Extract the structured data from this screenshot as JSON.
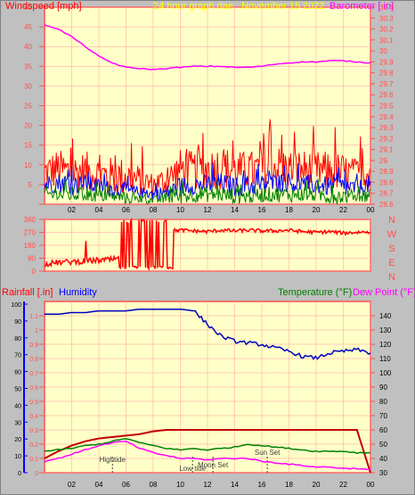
{
  "header": {
    "left_title": "Windspeed [mph]",
    "center_title": "24 hour graph dae : November 15 2022",
    "right_title": "Barometer [ in]"
  },
  "colors": {
    "background": "#c0c0c0",
    "plot_bg": "#ffffc8",
    "frame": "#ff5050",
    "grid": "#ff9c9c",
    "wind_gust": "#ff0000",
    "wind_avg": "#0000ff",
    "wind_low": "#008000",
    "wind_min": "#c0c000",
    "barometer": "#ff00ff",
    "direction": "#ff0000",
    "humidity": "#0000c0",
    "rainfall": "#c00000",
    "temperature": "#008000",
    "dewpoint": "#ff00ff",
    "label_yellow": "#ffff00",
    "axis_blue": "#0000ff",
    "text_dark": "#000000",
    "grey_text": "#404040"
  },
  "x_ticks": [
    "02",
    "04",
    "06",
    "08",
    "10",
    "12",
    "14",
    "16",
    "18",
    "20",
    "22",
    "00"
  ],
  "chart_data": [
    {
      "type": "line",
      "id": "wind_baro",
      "title": "24 hour graph dae : November 15 2022",
      "xlabel": "",
      "x_hours": [
        0,
        1,
        2,
        3,
        4,
        5,
        6,
        7,
        8,
        9,
        10,
        11,
        12,
        13,
        14,
        15,
        16,
        17,
        18,
        19,
        20,
        21,
        22,
        23,
        24
      ],
      "left_axis": {
        "label": "Windspeed [mph]",
        "ylim": [
          0,
          50
        ],
        "ticks": [
          0,
          5,
          10,
          15,
          20,
          25,
          30,
          35,
          40,
          45,
          50
        ]
      },
      "right_axis": {
        "label": "Barometer [ in]",
        "ylim": [
          28.6,
          30.4
        ],
        "ticks": [
          28.6,
          28.7,
          28.8,
          28.9,
          29.0,
          29.1,
          29.2,
          29.3,
          29.4,
          29.5,
          29.6,
          29.7,
          29.8,
          29.9,
          30.0,
          30.1,
          30.2,
          30.3,
          30.4
        ],
        "tick_labels": [
          "28.6",
          "28.7",
          "28.8",
          "28.9",
          "29",
          "29.1",
          "29.2",
          "29.3",
          "29.4",
          "29.5",
          "29.6",
          "29.7",
          "29.8",
          "29.9",
          "30",
          "30.1",
          "30.2",
          "30.3",
          "30.4"
        ]
      },
      "series": [
        {
          "name": "Windspeed",
          "axis": "left",
          "color": "#ff0000",
          "mean": [
            8,
            9,
            8,
            8.5,
            7.5,
            7,
            7,
            6,
            5,
            6,
            9,
            8.5,
            9,
            9.5,
            8.5,
            8.5,
            8.5,
            9.5,
            9,
            9,
            8.5,
            8.5,
            8,
            7.5,
            9
          ],
          "spread": [
            5,
            5,
            5,
            5,
            5,
            5,
            5,
            4,
            3,
            4,
            5,
            5,
            5,
            6,
            5,
            5,
            6,
            6,
            5,
            5,
            5,
            5,
            5,
            4,
            5
          ]
        },
        {
          "name": "Average",
          "axis": "left",
          "color": "#0000ff",
          "mean": [
            5,
            5.5,
            5,
            5,
            4.5,
            4,
            3.5,
            3,
            2.5,
            3,
            4.5,
            5,
            5,
            5.5,
            4.5,
            4.5,
            5,
            5.5,
            5.5,
            5,
            5,
            4.5,
            4.5,
            4,
            5
          ],
          "spread": [
            2.5,
            2.5,
            2.5,
            2.5,
            2,
            2,
            2,
            1.5,
            1.5,
            2,
            2.5,
            2.5,
            2.5,
            2.5,
            2.5,
            2.5,
            2.5,
            2.5,
            2.5,
            2.5,
            2.5,
            2.5,
            2.5,
            2,
            2.5
          ]
        },
        {
          "name": "Low",
          "axis": "left",
          "color": "#008000",
          "mean": [
            2.5,
            2.5,
            2.5,
            2.5,
            2,
            2,
            1.5,
            1.2,
            1,
            1.5,
            2,
            2.5,
            2.5,
            2.5,
            2,
            2,
            2.5,
            2.5,
            2.5,
            2.5,
            2.5,
            2,
            2,
            2,
            2.5
          ],
          "spread": [
            2,
            2,
            2,
            2,
            1.5,
            1.5,
            1.5,
            1,
            1,
            1.5,
            2,
            2,
            2,
            2,
            2,
            2,
            2,
            2,
            2,
            2,
            2,
            2,
            2,
            1.5,
            2
          ]
        },
        {
          "name": "Barometer",
          "axis": "right",
          "color": "#ff00ff",
          "values": [
            30.24,
            30.2,
            30.13,
            30.04,
            29.95,
            29.89,
            29.85,
            29.84,
            29.83,
            29.84,
            29.85,
            29.86,
            29.86,
            29.86,
            29.85,
            29.85,
            29.86,
            29.88,
            29.89,
            29.9,
            29.9,
            29.91,
            29.91,
            29.9,
            29.89
          ]
        }
      ]
    },
    {
      "type": "line",
      "id": "direction",
      "ylim": [
        0,
        360
      ],
      "ticks": [
        0,
        90,
        180,
        270,
        360
      ],
      "compass_labels": [
        "N",
        "W",
        "S",
        "E",
        "N"
      ],
      "series": [
        {
          "name": "Wind direction",
          "color": "#ff0000",
          "values": [
            50,
            60,
            65,
            70,
            75,
            80,
            90,
            150,
            240,
            280,
            285,
            280,
            275,
            285,
            280,
            285,
            280,
            280,
            285,
            275,
            270,
            275,
            265,
            270,
            275
          ]
        }
      ]
    },
    {
      "type": "line",
      "id": "rain_hum_temp",
      "left_axis_labels": [
        "Rainfall [.in]",
        "Humidity"
      ],
      "right_axis_labels": [
        "Temperature (°F)",
        "Dew Point (°F)"
      ],
      "left_inner": {
        "ylim": [
          0,
          1.2
        ],
        "ticks": [
          0,
          0.1,
          0.2,
          0.3,
          0.4,
          0.5,
          0.6,
          0.7,
          0.8,
          0.9,
          1,
          1.1
        ],
        "tick_labels": [
          "0",
          "0.1",
          "0.2",
          "0.3",
          "0.4",
          "0.5",
          "0.6",
          "0.7",
          "0.8",
          "0.9",
          "1",
          "1.1"
        ]
      },
      "left_outer": {
        "ylim": [
          0,
          100
        ],
        "ticks": [
          0,
          10,
          20,
          30,
          40,
          50,
          60,
          70,
          80,
          90,
          100
        ]
      },
      "right_axis": {
        "ylim": [
          30,
          150
        ],
        "ticks": [
          30,
          40,
          50,
          60,
          70,
          80,
          90,
          100,
          110,
          120,
          130,
          140
        ]
      },
      "series": [
        {
          "name": "Humidity",
          "axis": "left_outer",
          "color": "#0000c0",
          "values": [
            94,
            94,
            95,
            95,
            96,
            96,
            96,
            97,
            97,
            97,
            97,
            96,
            88,
            81,
            78,
            77,
            76,
            74,
            72,
            69,
            68,
            71,
            72,
            73,
            71
          ]
        },
        {
          "name": "Rainfall",
          "axis": "left_inner",
          "color": "#c00000",
          "values": [
            0.1,
            0.15,
            0.19,
            0.22,
            0.24,
            0.25,
            0.26,
            0.27,
            0.29,
            0.3,
            0.3,
            0.3,
            0.3,
            0.3,
            0.3,
            0.3,
            0.3,
            0.3,
            0.3,
            0.3,
            0.3,
            0.3,
            0.3,
            0.3,
            0.0
          ]
        },
        {
          "name": "Temperature",
          "axis": "right",
          "color": "#008000",
          "values": [
            45,
            46,
            47,
            49,
            50,
            52,
            54,
            51,
            49,
            47,
            46,
            47,
            46,
            47,
            48,
            50,
            49,
            48,
            47,
            46,
            45,
            45,
            45,
            44,
            44
          ]
        },
        {
          "name": "Dew Point",
          "axis": "right",
          "color": "#ff00ff",
          "values": [
            38,
            40,
            43,
            46,
            49,
            51,
            52,
            47,
            44,
            42,
            40,
            40,
            39,
            40,
            40,
            40,
            38,
            37,
            36,
            35,
            34,
            34,
            33,
            33,
            32
          ]
        }
      ],
      "events": [
        {
          "label": "Hightide",
          "hour": 5.0
        },
        {
          "label": "Low tide",
          "hour": 10.9
        },
        {
          "label": "Moon Set",
          "hour": 12.4
        },
        {
          "label": "Sun Set",
          "hour": 16.4
        }
      ]
    }
  ]
}
